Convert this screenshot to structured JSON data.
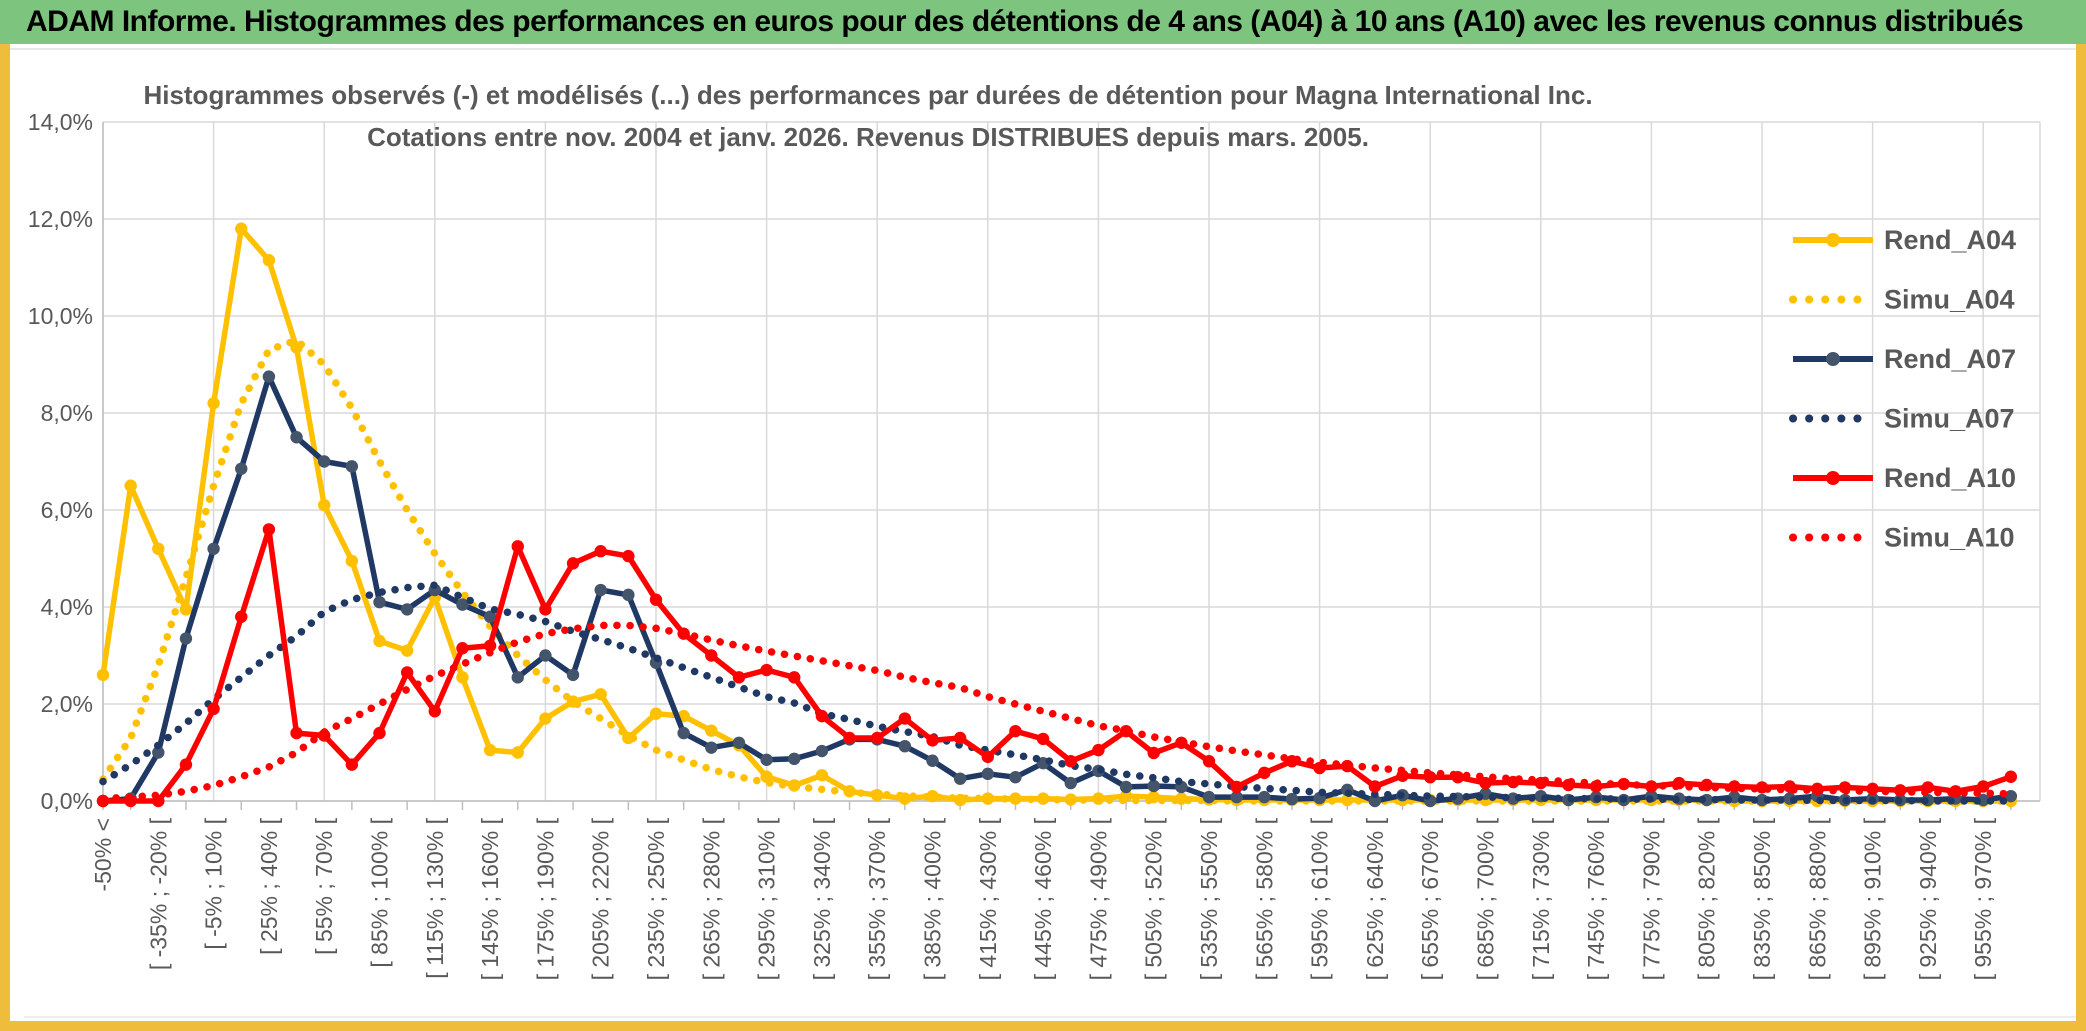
{
  "header": {
    "title": "ADAM Informe. Histogrammes des performances en euros pour des détentions de 4 ans (A04) à 10 ans (A10) avec les revenus connus distribués"
  },
  "colors": {
    "header_green": "#7DC57E",
    "frame_yellow": "#EFBC3B",
    "grid": "#D9D9D9",
    "axis_text": "#595959",
    "title_text": "#595959",
    "gold": "#FFC000",
    "navy": "#1F3864",
    "navy_marker": "#44546A",
    "red": "#FF0000"
  },
  "chart_data": {
    "type": "line",
    "title_line1": "Histogrammes observés (-) et modélisés (...) des performances par durées de détention pour Magna International Inc.",
    "title_line2": "Cotations entre nov. 2004 et janv. 2026. Revenus DISTRIBUES depuis mars. 2005.",
    "grid": true,
    "legend_position": "right-inside",
    "y_axis": {
      "min": 0,
      "max": 14,
      "step": 2,
      "tick_labels": [
        "0,0%",
        "2,0%",
        "4,0%",
        "6,0%",
        "8,0%",
        "10,0%",
        "12,0%",
        "14,0%"
      ]
    },
    "x_axis": {
      "n_bins": 70,
      "label_every_n_bins": 2,
      "labels": [
        "-50% <",
        "[ -35% ; -20% [",
        "[ -5% ; 10% [",
        "[ 25% ; 40% [",
        "[ 55% ; 70% [",
        "[ 85% ; 100% [",
        "[ 115% ; 130% [",
        "[ 145% ; 160% [",
        "[ 175% ; 190% [",
        "[ 205% ; 220% [",
        "[ 235% ; 250% [",
        "[ 265% ; 280% [",
        "[ 295% ; 310% [",
        "[ 325% ; 340% [",
        "[ 355% ; 370% [",
        "[ 385% ; 400% [",
        "[ 415% ; 430% [",
        "[ 445% ; 460% [",
        "[ 475% ; 490% [",
        "[ 505% ; 520% [",
        "[ 535% ; 550% [",
        "[ 565% ; 580% [",
        "[ 595% ; 610% [",
        "[ 625% ; 640% [",
        "[ 655% ; 670% [",
        "[ 685% ; 700% [",
        "[ 715% ; 730% [",
        "[ 745% ; 760% [",
        "[ 775% ; 790% [",
        "[ 805% ; 820% [",
        "[ 835% ; 850% [",
        "[ 865% ; 880% [",
        "[ 895% ; 910% [",
        "[ 925% ; 940% [",
        "[ 955% ; 970% ["
      ]
    },
    "series": [
      {
        "name": "Rend_A04",
        "style": "solid",
        "color": "#FFC000",
        "marker_color": "#FFC000",
        "values": [
          2.6,
          6.5,
          5.2,
          3.95,
          8.2,
          11.8,
          11.15,
          9.35,
          6.1,
          4.95,
          3.3,
          3.1,
          4.2,
          2.55,
          1.05,
          1.0,
          1.7,
          2.05,
          2.2,
          1.3,
          1.8,
          1.75,
          1.45,
          1.15,
          0.5,
          0.32,
          0.53,
          0.2,
          0.12,
          0.05,
          0.1,
          0.02,
          0.05,
          0.05,
          0.05,
          0.03,
          0.05,
          0.1,
          0.08,
          0.05,
          0.03,
          0.02,
          0.02,
          0.02,
          0.02,
          0.02,
          0.02,
          0.02,
          0.02,
          0.02,
          0.02,
          0.02,
          0.02,
          0.02,
          0.02,
          0.02,
          0.02,
          0.02,
          0.02,
          0,
          0,
          0,
          0,
          0,
          0,
          0,
          0,
          0,
          0,
          0
        ]
      },
      {
        "name": "Simu_A04",
        "style": "dotted",
        "color": "#FFC000",
        "values": [
          0.45,
          1.3,
          2.8,
          4.6,
          6.5,
          8.2,
          9.3,
          9.5,
          9.0,
          8.1,
          7.0,
          6.0,
          5.1,
          4.3,
          3.6,
          3.0,
          2.5,
          2.05,
          1.7,
          1.35,
          1.05,
          0.85,
          0.65,
          0.5,
          0.38,
          0.3,
          0.24,
          0.18,
          0.14,
          0.11,
          0.08,
          0.06,
          0.05,
          0.04,
          0.03,
          0.02,
          0.02,
          0.01,
          0.01,
          0.01,
          0.01,
          0,
          0,
          0,
          0,
          0,
          0,
          0,
          0,
          0,
          0,
          0,
          0,
          0,
          0,
          0,
          0,
          0,
          0,
          0,
          0,
          0,
          0,
          0,
          0,
          0,
          0,
          0,
          0,
          0
        ]
      },
      {
        "name": "Rend_A07",
        "style": "solid",
        "color": "#1F3864",
        "marker_color": "#44546A",
        "values": [
          0,
          0.05,
          1.0,
          3.35,
          5.2,
          6.85,
          8.75,
          7.5,
          7.0,
          6.9,
          4.1,
          3.95,
          4.35,
          4.05,
          3.8,
          2.55,
          3.0,
          2.6,
          4.35,
          4.25,
          2.85,
          1.4,
          1.1,
          1.2,
          0.85,
          0.87,
          1.03,
          1.27,
          1.27,
          1.13,
          0.83,
          0.46,
          0.56,
          0.49,
          0.78,
          0.37,
          0.62,
          0.29,
          0.31,
          0.29,
          0.08,
          0.08,
          0.08,
          0.04,
          0.06,
          0.23,
          0,
          0.12,
          0,
          0.05,
          0.15,
          0.05,
          0.1,
          0.02,
          0.08,
          0.02,
          0.1,
          0.05,
          0.02,
          0.08,
          0.02,
          0.05,
          0.1,
          0.02,
          0.05,
          0.02,
          0.02,
          0.05,
          0.02,
          0.1
        ]
      },
      {
        "name": "Simu_A07",
        "style": "dotted",
        "color": "#1F3864",
        "values": [
          0.4,
          0.75,
          1.15,
          1.6,
          2.1,
          2.55,
          3.0,
          3.4,
          3.9,
          4.15,
          4.3,
          4.4,
          4.45,
          4.2,
          3.96,
          3.85,
          3.7,
          3.5,
          3.33,
          3.15,
          2.95,
          2.75,
          2.55,
          2.35,
          2.15,
          2.02,
          1.8,
          1.68,
          1.54,
          1.43,
          1.33,
          1.15,
          1.05,
          0.95,
          0.85,
          0.73,
          0.65,
          0.55,
          0.48,
          0.4,
          0.35,
          0.3,
          0.26,
          0.22,
          0.18,
          0.16,
          0.14,
          0.12,
          0.1,
          0.09,
          0.08,
          0.07,
          0.06,
          0.05,
          0.05,
          0.04,
          0.04,
          0.03,
          0.03,
          0.02,
          0.02,
          0.02,
          0.01,
          0.01,
          0.01,
          0.01,
          0,
          0,
          0,
          0
        ]
      },
      {
        "name": "Rend_A10",
        "style": "solid",
        "color": "#FF0000",
        "marker_color": "#FF0000",
        "values": [
          0,
          0,
          0,
          0.75,
          1.9,
          3.8,
          5.6,
          1.4,
          1.35,
          0.75,
          1.4,
          2.65,
          1.85,
          3.15,
          3.2,
          5.25,
          3.95,
          4.9,
          5.15,
          5.05,
          4.15,
          3.45,
          3.0,
          2.55,
          2.7,
          2.55,
          1.75,
          1.3,
          1.3,
          1.7,
          1.25,
          1.3,
          0.91,
          1.44,
          1.28,
          0.82,
          1.05,
          1.44,
          0.99,
          1.2,
          0.82,
          0.29,
          0.58,
          0.82,
          0.68,
          0.72,
          0.3,
          0.52,
          0.49,
          0.49,
          0.37,
          0.39,
          0.37,
          0.33,
          0.3,
          0.35,
          0.3,
          0.37,
          0.33,
          0.3,
          0.28,
          0.3,
          0.25,
          0.28,
          0.25,
          0.22,
          0.28,
          0.2,
          0.3,
          0.5
        ]
      },
      {
        "name": "Simu_A10",
        "style": "dotted",
        "color": "#FF0000",
        "values": [
          0.05,
          0.08,
          0.12,
          0.2,
          0.32,
          0.5,
          0.7,
          1.0,
          1.42,
          1.7,
          2.0,
          2.3,
          2.58,
          2.82,
          3.06,
          3.28,
          3.45,
          3.55,
          3.62,
          3.62,
          3.56,
          3.45,
          3.32,
          3.2,
          3.09,
          2.99,
          2.89,
          2.79,
          2.69,
          2.55,
          2.44,
          2.34,
          2.15,
          2.0,
          1.85,
          1.7,
          1.55,
          1.45,
          1.32,
          1.22,
          1.12,
          1.03,
          0.95,
          0.87,
          0.8,
          0.74,
          0.68,
          0.63,
          0.58,
          0.54,
          0.5,
          0.46,
          0.43,
          0.4,
          0.37,
          0.34,
          0.32,
          0.3,
          0.28,
          0.26,
          0.25,
          0.23,
          0.22,
          0.21,
          0.2,
          0.19,
          0.18,
          0.17,
          0.16,
          0.15
        ]
      }
    ]
  }
}
